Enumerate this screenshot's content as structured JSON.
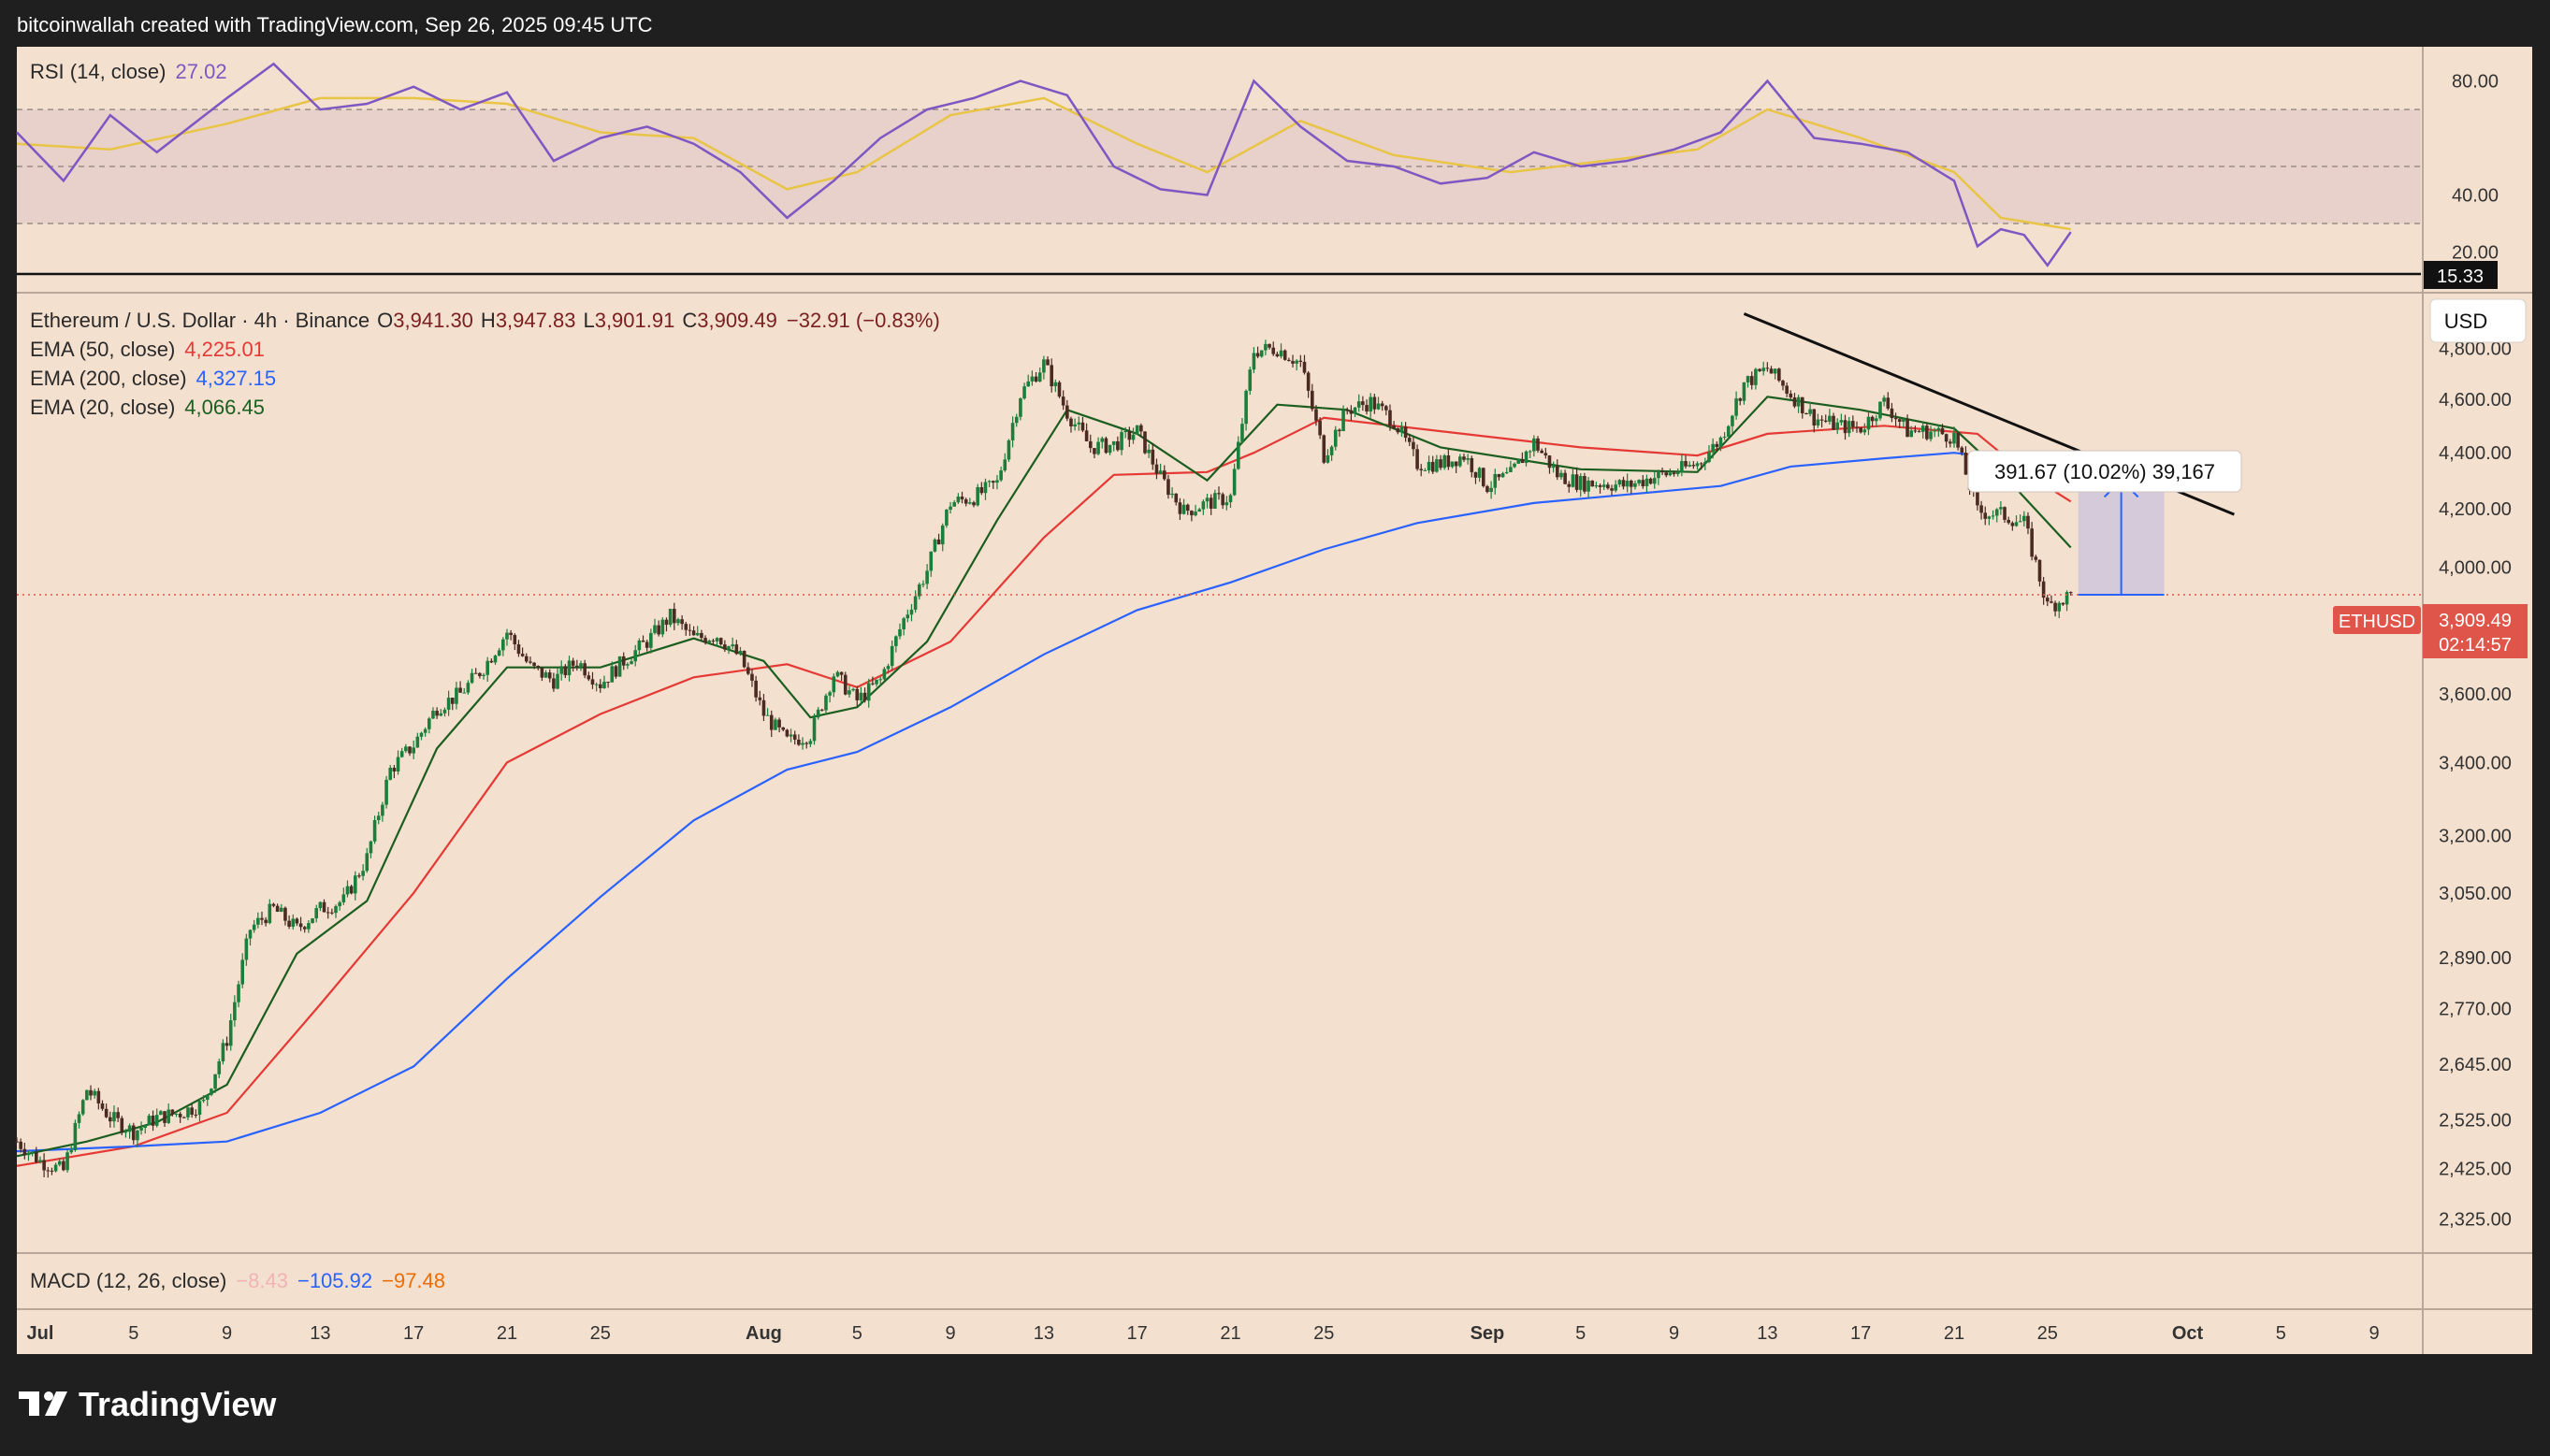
{
  "attribution": "bitcoinwallah created with TradingView.com, Sep 26, 2025 09:45 UTC",
  "brand": "TradingView",
  "colors": {
    "frame": "#1f1f1f",
    "panel": "#f3e0cf",
    "rsi_band": "#e8d1cb",
    "rsi": "#7e57c2",
    "rsi_ma": "#e8c547",
    "up": "#1b7f3b",
    "down": "#4b2a22",
    "ema50": "#e53935",
    "ema200": "#2962ff",
    "ema20": "#1b5e20",
    "price_tag": "#e0554a",
    "measure_fill": "#c9c3dd",
    "measure_line": "#2962ff"
  },
  "rsi_panel": {
    "legend_name": "RSI (14, close)",
    "legend_value": "27.02",
    "axis_labels": [
      "80.00",
      "40.00",
      "20.00"
    ],
    "low_tag": "15.33"
  },
  "main_panel": {
    "symbol": "Ethereum / U.S. Dollar · 4h · Binance",
    "ohlc": {
      "o_label": "O",
      "open": "3,941.30",
      "h_label": "H",
      "high": "3,947.83",
      "l_label": "L",
      "low": "3,901.91",
      "c_label": "C",
      "close": "3,909.49",
      "change": "−32.91 (−0.83%)"
    },
    "ema_legends": [
      {
        "name": "EMA (50, close)",
        "value": "4,225.01"
      },
      {
        "name": "EMA (200, close)",
        "value": "4,327.15"
      },
      {
        "name": "EMA (20, close)",
        "value": "4,066.45"
      }
    ],
    "currency": "USD",
    "symbol_tag": "ETHUSD",
    "last_price": "3,909.49",
    "countdown": "02:14:57",
    "price_axis": [
      "4,800.00",
      "4,600.00",
      "4,400.00",
      "4,200.00",
      "4,000.00",
      "3,600.00",
      "3,400.00",
      "3,200.00",
      "3,050.00",
      "2,890.00",
      "2,770.00",
      "2,645.00",
      "2,525.00",
      "2,425.00",
      "2,325.00"
    ],
    "measure_label": "391.67 (10.02%) 39,167"
  },
  "macd_panel": {
    "legend_name": "MACD (12, 26, close)",
    "hist": "−8.43",
    "macd": "−105.92",
    "signal": "−97.48"
  },
  "time_axis": [
    "Jul",
    "5",
    "9",
    "13",
    "17",
    "21",
    "25",
    "Aug",
    "5",
    "9",
    "13",
    "17",
    "21",
    "25",
    "Sep",
    "5",
    "9",
    "13",
    "17",
    "21",
    "25",
    "Oct",
    "5",
    "9"
  ],
  "chart_data": {
    "type": "candlestick",
    "symbol": "ETHUSD",
    "interval": "4h",
    "exchange": "Binance",
    "price_scale": "log",
    "ylim": [
      2260,
      5000
    ],
    "x_range": [
      "2025-06-30",
      "2025-10-11"
    ],
    "close_path": [
      [
        "2025-06-30",
        2480
      ],
      [
        "2025-07-01",
        2440
      ],
      [
        "2025-07-02",
        2420
      ],
      [
        "2025-07-03",
        2590
      ],
      [
        "2025-07-04",
        2530
      ],
      [
        "2025-07-05",
        2500
      ],
      [
        "2025-07-06",
        2530
      ],
      [
        "2025-07-07",
        2540
      ],
      [
        "2025-07-08",
        2560
      ],
      [
        "2025-07-09",
        2700
      ],
      [
        "2025-07-10",
        2960
      ],
      [
        "2025-07-11",
        3010
      ],
      [
        "2025-07-12",
        2960
      ],
      [
        "2025-07-13",
        3010
      ],
      [
        "2025-07-14",
        3030
      ],
      [
        "2025-07-15",
        3140
      ],
      [
        "2025-07-16",
        3380
      ],
      [
        "2025-07-17",
        3450
      ],
      [
        "2025-07-18",
        3560
      ],
      [
        "2025-07-19",
        3600
      ],
      [
        "2025-07-20",
        3680
      ],
      [
        "2025-07-21",
        3790
      ],
      [
        "2025-07-22",
        3680
      ],
      [
        "2025-07-23",
        3640
      ],
      [
        "2025-07-24",
        3700
      ],
      [
        "2025-07-25",
        3630
      ],
      [
        "2025-07-26",
        3700
      ],
      [
        "2025-07-27",
        3760
      ],
      [
        "2025-07-28",
        3840
      ],
      [
        "2025-07-29",
        3770
      ],
      [
        "2025-07-30",
        3780
      ],
      [
        "2025-07-31",
        3710
      ],
      [
        "2025-08-01",
        3540
      ],
      [
        "2025-08-02",
        3460
      ],
      [
        "2025-08-03",
        3480
      ],
      [
        "2025-08-04",
        3660
      ],
      [
        "2025-08-05",
        3580
      ],
      [
        "2025-08-06",
        3640
      ],
      [
        "2025-08-07",
        3830
      ],
      [
        "2025-08-08",
        3990
      ],
      [
        "2025-08-09",
        4220
      ],
      [
        "2025-08-10",
        4240
      ],
      [
        "2025-08-11",
        4290
      ],
      [
        "2025-08-12",
        4620
      ],
      [
        "2025-08-13",
        4740
      ],
      [
        "2025-08-14",
        4550
      ],
      [
        "2025-08-15",
        4420
      ],
      [
        "2025-08-16",
        4430
      ],
      [
        "2025-08-17",
        4480
      ],
      [
        "2025-08-18",
        4310
      ],
      [
        "2025-08-19",
        4190
      ],
      [
        "2025-08-20",
        4220
      ],
      [
        "2025-08-21",
        4240
      ],
      [
        "2025-08-22",
        4790
      ],
      [
        "2025-08-23",
        4800
      ],
      [
        "2025-08-24",
        4740
      ],
      [
        "2025-08-25",
        4390
      ],
      [
        "2025-08-26",
        4560
      ],
      [
        "2025-08-27",
        4590
      ],
      [
        "2025-08-28",
        4520
      ],
      [
        "2025-08-29",
        4360
      ],
      [
        "2025-08-30",
        4360
      ],
      [
        "2025-08-31",
        4390
      ],
      [
        "2025-09-01",
        4280
      ],
      [
        "2025-09-02",
        4320
      ],
      [
        "2025-09-03",
        4440
      ],
      [
        "2025-09-04",
        4320
      ],
      [
        "2025-09-05",
        4290
      ],
      [
        "2025-09-06",
        4290
      ],
      [
        "2025-09-07",
        4280
      ],
      [
        "2025-09-08",
        4310
      ],
      [
        "2025-09-09",
        4330
      ],
      [
        "2025-09-10",
        4360
      ],
      [
        "2025-09-11",
        4450
      ],
      [
        "2025-09-12",
        4660
      ],
      [
        "2025-09-13",
        4720
      ],
      [
        "2025-09-14",
        4620
      ],
      [
        "2025-09-15",
        4530
      ],
      [
        "2025-09-16",
        4500
      ],
      [
        "2025-09-17",
        4490
      ],
      [
        "2025-09-18",
        4590
      ],
      [
        "2025-09-19",
        4480
      ],
      [
        "2025-09-20",
        4480
      ],
      [
        "2025-09-21",
        4460
      ],
      [
        "2025-09-22",
        4190
      ],
      [
        "2025-09-23",
        4180
      ],
      [
        "2025-09-24",
        4150
      ],
      [
        "2025-09-25",
        3870
      ],
      [
        "2025-09-26",
        3909.49
      ]
    ],
    "ema_series": [
      {
        "name": "EMA (50, close)",
        "color": "#e53935",
        "points": [
          [
            "2025-06-30",
            2430
          ],
          [
            "2025-07-05",
            2470
          ],
          [
            "2025-07-09",
            2540
          ],
          [
            "2025-07-13",
            2780
          ],
          [
            "2025-07-17",
            3050
          ],
          [
            "2025-07-21",
            3400
          ],
          [
            "2025-07-25",
            3540
          ],
          [
            "2025-07-29",
            3650
          ],
          [
            "2025-08-02",
            3690
          ],
          [
            "2025-08-05",
            3620
          ],
          [
            "2025-08-09",
            3760
          ],
          [
            "2025-08-13",
            4100
          ],
          [
            "2025-08-16",
            4320
          ],
          [
            "2025-08-20",
            4330
          ],
          [
            "2025-08-22",
            4400
          ],
          [
            "2025-08-25",
            4530
          ],
          [
            "2025-08-30",
            4480
          ],
          [
            "2025-09-05",
            4420
          ],
          [
            "2025-09-10",
            4390
          ],
          [
            "2025-09-13",
            4470
          ],
          [
            "2025-09-18",
            4500
          ],
          [
            "2025-09-22",
            4470
          ],
          [
            "2025-09-24",
            4330
          ],
          [
            "2025-09-26",
            4225.01
          ]
        ]
      },
      {
        "name": "EMA (200, close)",
        "color": "#2962ff",
        "points": [
          [
            "2025-06-30",
            2460
          ],
          [
            "2025-07-05",
            2470
          ],
          [
            "2025-07-09",
            2480
          ],
          [
            "2025-07-13",
            2540
          ],
          [
            "2025-07-17",
            2640
          ],
          [
            "2025-07-21",
            2840
          ],
          [
            "2025-07-25",
            3040
          ],
          [
            "2025-07-29",
            3240
          ],
          [
            "2025-08-02",
            3380
          ],
          [
            "2025-08-05",
            3430
          ],
          [
            "2025-08-09",
            3560
          ],
          [
            "2025-08-13",
            3720
          ],
          [
            "2025-08-17",
            3860
          ],
          [
            "2025-08-21",
            3950
          ],
          [
            "2025-08-25",
            4060
          ],
          [
            "2025-08-29",
            4150
          ],
          [
            "2025-09-03",
            4220
          ],
          [
            "2025-09-07",
            4250
          ],
          [
            "2025-09-11",
            4280
          ],
          [
            "2025-09-14",
            4350
          ],
          [
            "2025-09-18",
            4380
          ],
          [
            "2025-09-21",
            4400
          ],
          [
            "2025-09-24",
            4370
          ],
          [
            "2025-09-26",
            4327.15
          ]
        ]
      },
      {
        "name": "EMA (20, close)",
        "color": "#1b5e20",
        "points": [
          [
            "2025-06-30",
            2450
          ],
          [
            "2025-07-03",
            2480
          ],
          [
            "2025-07-06",
            2520
          ],
          [
            "2025-07-09",
            2600
          ],
          [
            "2025-07-12",
            2900
          ],
          [
            "2025-07-15",
            3030
          ],
          [
            "2025-07-18",
            3440
          ],
          [
            "2025-07-21",
            3680
          ],
          [
            "2025-07-25",
            3680
          ],
          [
            "2025-07-29",
            3770
          ],
          [
            "2025-08-01",
            3700
          ],
          [
            "2025-08-03",
            3530
          ],
          [
            "2025-08-05",
            3560
          ],
          [
            "2025-08-08",
            3760
          ],
          [
            "2025-08-11",
            4160
          ],
          [
            "2025-08-14",
            4560
          ],
          [
            "2025-08-17",
            4470
          ],
          [
            "2025-08-20",
            4300
          ],
          [
            "2025-08-23",
            4580
          ],
          [
            "2025-08-26",
            4560
          ],
          [
            "2025-08-30",
            4420
          ],
          [
            "2025-09-05",
            4340
          ],
          [
            "2025-09-10",
            4330
          ],
          [
            "2025-09-13",
            4610
          ],
          [
            "2025-09-17",
            4560
          ],
          [
            "2025-09-21",
            4490
          ],
          [
            "2025-09-23",
            4330
          ],
          [
            "2025-09-26",
            4066.45
          ]
        ]
      }
    ],
    "trendline": {
      "from": [
        "2025-09-12",
        4940
      ],
      "to": [
        "2025-10-03",
        4180
      ]
    },
    "measure": {
      "x_from": "2025-09-26",
      "x_to": "2025-09-30",
      "y_from": 3909.49,
      "y_to": 4301.16,
      "change": 391.67,
      "percent": 10.02
    },
    "rsi": {
      "ylim": [
        10,
        92
      ],
      "bands": [
        70,
        50,
        30
      ],
      "scale_marks": [
        80,
        40,
        20
      ],
      "low_marker": 15.33,
      "path": [
        [
          "2025-06-30",
          62
        ],
        [
          "2025-07-02",
          45
        ],
        [
          "2025-07-04",
          68
        ],
        [
          "2025-07-06",
          55
        ],
        [
          "2025-07-09",
          74
        ],
        [
          "2025-07-11",
          86
        ],
        [
          "2025-07-13",
          70
        ],
        [
          "2025-07-15",
          72
        ],
        [
          "2025-07-17",
          78
        ],
        [
          "2025-07-19",
          70
        ],
        [
          "2025-07-21",
          76
        ],
        [
          "2025-07-23",
          52
        ],
        [
          "2025-07-25",
          60
        ],
        [
          "2025-07-27",
          64
        ],
        [
          "2025-07-29",
          58
        ],
        [
          "2025-07-31",
          48
        ],
        [
          "2025-08-02",
          32
        ],
        [
          "2025-08-04",
          45
        ],
        [
          "2025-08-06",
          60
        ],
        [
          "2025-08-08",
          70
        ],
        [
          "2025-08-10",
          74
        ],
        [
          "2025-08-12",
          80
        ],
        [
          "2025-08-14",
          75
        ],
        [
          "2025-08-16",
          50
        ],
        [
          "2025-08-18",
          42
        ],
        [
          "2025-08-20",
          40
        ],
        [
          "2025-08-22",
          80
        ],
        [
          "2025-08-24",
          64
        ],
        [
          "2025-08-26",
          52
        ],
        [
          "2025-08-28",
          50
        ],
        [
          "2025-08-30",
          44
        ],
        [
          "2025-09-01",
          46
        ],
        [
          "2025-09-03",
          55
        ],
        [
          "2025-09-05",
          50
        ],
        [
          "2025-09-07",
          52
        ],
        [
          "2025-09-09",
          56
        ],
        [
          "2025-09-11",
          62
        ],
        [
          "2025-09-13",
          80
        ],
        [
          "2025-09-15",
          60
        ],
        [
          "2025-09-17",
          58
        ],
        [
          "2025-09-19",
          55
        ],
        [
          "2025-09-21",
          45
        ],
        [
          "2025-09-22",
          22
        ],
        [
          "2025-09-23",
          28
        ],
        [
          "2025-09-24",
          26
        ],
        [
          "2025-09-25",
          15.33
        ],
        [
          "2025-09-26",
          27.02
        ]
      ],
      "ma_path": [
        [
          "2025-06-30",
          58
        ],
        [
          "2025-07-04",
          56
        ],
        [
          "2025-07-09",
          65
        ],
        [
          "2025-07-13",
          74
        ],
        [
          "2025-07-17",
          74
        ],
        [
          "2025-07-21",
          72
        ],
        [
          "2025-07-25",
          62
        ],
        [
          "2025-07-29",
          60
        ],
        [
          "2025-08-02",
          42
        ],
        [
          "2025-08-05",
          48
        ],
        [
          "2025-08-09",
          68
        ],
        [
          "2025-08-13",
          74
        ],
        [
          "2025-08-17",
          58
        ],
        [
          "2025-08-20",
          48
        ],
        [
          "2025-08-24",
          66
        ],
        [
          "2025-08-28",
          54
        ],
        [
          "2025-09-02",
          48
        ],
        [
          "2025-09-06",
          52
        ],
        [
          "2025-09-10",
          56
        ],
        [
          "2025-09-13",
          70
        ],
        [
          "2025-09-17",
          60
        ],
        [
          "2025-09-21",
          48
        ],
        [
          "2025-09-23",
          32
        ],
        [
          "2025-09-26",
          28
        ]
      ]
    }
  }
}
